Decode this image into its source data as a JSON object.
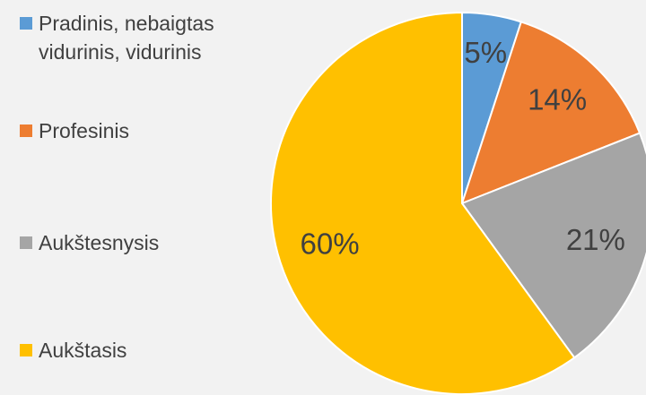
{
  "chart_data": {
    "type": "pie",
    "categories": [
      "Pradinis, nebaigtas vidurinis, vidurinis",
      "Profesinis",
      "Aukštesnysis",
      "Aukštasis"
    ],
    "values": [
      5,
      14,
      21,
      60
    ],
    "value_labels": [
      "5%",
      "14%",
      "21%",
      "60%"
    ],
    "colors": [
      "#5b9bd5",
      "#ed7d31",
      "#a5a5a5",
      "#ffc000"
    ]
  }
}
